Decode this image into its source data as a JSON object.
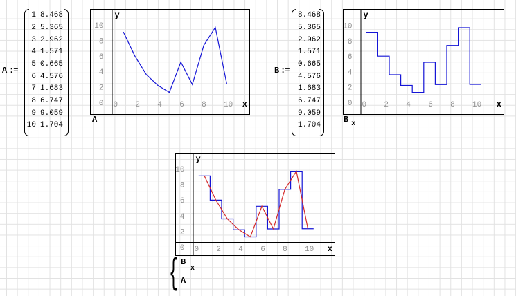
{
  "app": {
    "background_color": "#ffffff",
    "grid_color": "#e2e2e2",
    "axis_color": "#000000",
    "tick_label_color": "#8f8f8f",
    "series_blue": "#1515d6",
    "series_red": "#d42a2a"
  },
  "matrix_a": {
    "label": "A",
    "assign": ":=",
    "rows": [
      [
        "1",
        "8.468"
      ],
      [
        "2",
        "5.365"
      ],
      [
        "3",
        "2.962"
      ],
      [
        "4",
        "1.571"
      ],
      [
        "5",
        "0.665"
      ],
      [
        "6",
        "4.576"
      ],
      [
        "7",
        "1.683"
      ],
      [
        "8",
        "6.747"
      ],
      [
        "9",
        "9.059"
      ],
      [
        "10",
        "1.704"
      ]
    ]
  },
  "matrix_b": {
    "label": "B",
    "assign": ":=",
    "rows": [
      [
        "8.468"
      ],
      [
        "5.365"
      ],
      [
        "2.962"
      ],
      [
        "1.571"
      ],
      [
        "0.665"
      ],
      [
        "4.576"
      ],
      [
        "1.683"
      ],
      [
        "6.747"
      ],
      [
        "9.059"
      ],
      [
        "1.704"
      ]
    ]
  },
  "captions": {
    "chart_a": {
      "text": "A"
    },
    "chart_b": {
      "text": "B",
      "sub": "x"
    },
    "chart_ab": {
      "brace": "{",
      "items": [
        {
          "text": "B",
          "sub": "x"
        },
        {
          "text": "A"
        }
      ]
    }
  },
  "chart_data": [
    {
      "type": "line",
      "title": "A",
      "xlabel": "x",
      "ylabel": "y",
      "x_ticks": [
        0,
        2,
        4,
        6,
        8,
        10
      ],
      "y_ticks": [
        0,
        2,
        4,
        6,
        8,
        10
      ],
      "xlim": [
        0,
        12.5
      ],
      "ylim": [
        0,
        11.4
      ],
      "grid": true,
      "x": [
        1,
        2,
        3,
        4,
        5,
        6,
        7,
        8,
        9,
        10
      ],
      "series": [
        {
          "name": "A",
          "style": "line",
          "color": "#1515d6",
          "values": [
            8.468,
            5.365,
            2.962,
            1.571,
            0.665,
            4.576,
            1.683,
            6.747,
            9.059,
            1.704
          ]
        }
      ]
    },
    {
      "type": "step",
      "title": "B x",
      "xlabel": "x",
      "ylabel": "y",
      "x_ticks": [
        0,
        2,
        4,
        6,
        8,
        10
      ],
      "y_ticks": [
        0,
        2,
        4,
        6,
        8,
        10
      ],
      "xlim": [
        0,
        13
      ],
      "ylim": [
        0,
        11.4
      ],
      "grid": true,
      "x": [
        1,
        2,
        3,
        4,
        5,
        6,
        7,
        8,
        9,
        10
      ],
      "series": [
        {
          "name": "B x",
          "style": "step",
          "color": "#1515d6",
          "values": [
            8.468,
            5.365,
            2.962,
            1.571,
            0.665,
            4.576,
            1.683,
            6.747,
            9.059,
            1.704
          ]
        }
      ]
    },
    {
      "type": "step+line",
      "title": "B x, A",
      "xlabel": "x",
      "ylabel": "y",
      "x_ticks": [
        0,
        2,
        4,
        6,
        8,
        10
      ],
      "y_ticks": [
        0,
        2,
        4,
        6,
        8,
        10
      ],
      "xlim": [
        0,
        12.9
      ],
      "ylim": [
        0,
        11.0
      ],
      "grid": true,
      "x": [
        1,
        2,
        3,
        4,
        5,
        6,
        7,
        8,
        9,
        10
      ],
      "series": [
        {
          "name": "B x",
          "style": "step",
          "color": "#1515d6",
          "values": [
            8.468,
            5.365,
            2.962,
            1.571,
            0.665,
            4.576,
            1.683,
            6.747,
            9.059,
            1.704
          ]
        },
        {
          "name": "A",
          "style": "line",
          "color": "#d42a2a",
          "values": [
            8.468,
            5.365,
            2.962,
            1.571,
            0.665,
            4.576,
            1.683,
            6.747,
            9.059,
            1.704
          ]
        }
      ]
    }
  ]
}
